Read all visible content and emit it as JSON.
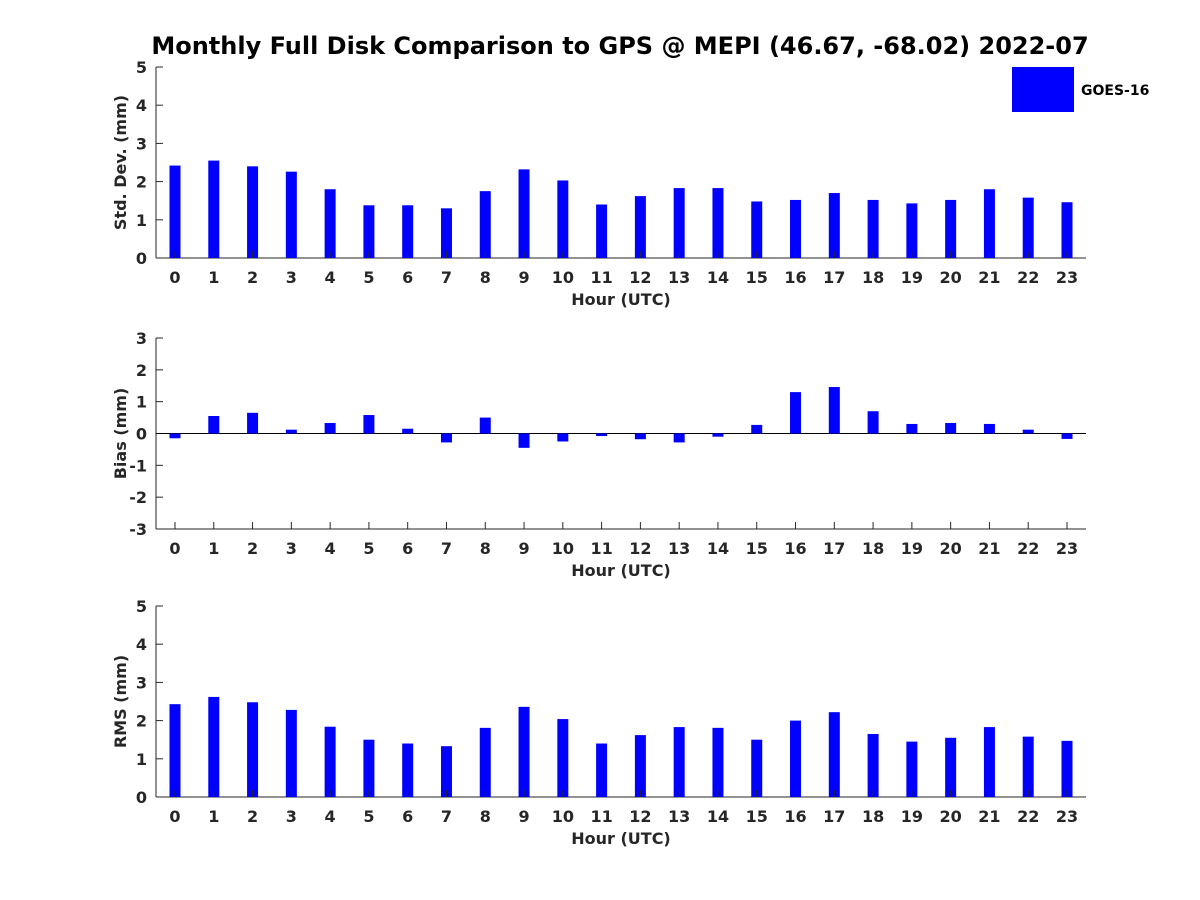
{
  "title": "Monthly Full Disk Comparison to GPS @ MEPI (46.67, -68.02) 2022-07",
  "colors": {
    "bar": "#0000ff",
    "axis": "#262626"
  },
  "legend": {
    "label": "GOES-16",
    "placement": "top-right"
  },
  "chart_data": [
    {
      "type": "bar",
      "xlabel": "Hour (UTC)",
      "ylabel": "Std. Dev. (mm)",
      "ylim": [
        0,
        5
      ],
      "yticks": [
        0,
        1,
        2,
        3,
        4,
        5
      ],
      "categories": [
        "0",
        "1",
        "2",
        "3",
        "4",
        "5",
        "6",
        "7",
        "8",
        "9",
        "10",
        "11",
        "12",
        "13",
        "14",
        "15",
        "16",
        "17",
        "18",
        "19",
        "20",
        "21",
        "22",
        "23"
      ],
      "series": [
        {
          "name": "GOES-16",
          "values": [
            2.42,
            2.55,
            2.4,
            2.26,
            1.8,
            1.38,
            1.38,
            1.3,
            1.75,
            2.32,
            2.03,
            1.4,
            1.62,
            1.83,
            1.83,
            1.48,
            1.52,
            1.7,
            1.52,
            1.43,
            1.52,
            1.8,
            1.58,
            1.46
          ]
        }
      ]
    },
    {
      "type": "bar",
      "xlabel": "Hour (UTC)",
      "ylabel": "Bias (mm)",
      "ylim": [
        -3,
        3
      ],
      "yticks": [
        -3,
        -2,
        -1,
        0,
        1,
        2,
        3
      ],
      "categories": [
        "0",
        "1",
        "2",
        "3",
        "4",
        "5",
        "6",
        "7",
        "8",
        "9",
        "10",
        "11",
        "12",
        "13",
        "14",
        "15",
        "16",
        "17",
        "18",
        "19",
        "20",
        "21",
        "22",
        "23"
      ],
      "series": [
        {
          "name": "GOES-16",
          "values": [
            -0.15,
            0.55,
            0.65,
            0.12,
            0.33,
            0.58,
            0.15,
            -0.28,
            0.5,
            -0.45,
            -0.25,
            -0.08,
            -0.18,
            -0.28,
            -0.1,
            0.27,
            1.3,
            1.46,
            0.7,
            0.3,
            0.33,
            0.3,
            0.12,
            -0.17
          ]
        }
      ]
    },
    {
      "type": "bar",
      "xlabel": "Hour (UTC)",
      "ylabel": "RMS (mm)",
      "ylim": [
        0,
        5
      ],
      "yticks": [
        0,
        1,
        2,
        3,
        4,
        5
      ],
      "categories": [
        "0",
        "1",
        "2",
        "3",
        "4",
        "5",
        "6",
        "7",
        "8",
        "9",
        "10",
        "11",
        "12",
        "13",
        "14",
        "15",
        "16",
        "17",
        "18",
        "19",
        "20",
        "21",
        "22",
        "23"
      ],
      "series": [
        {
          "name": "GOES-16",
          "values": [
            2.43,
            2.62,
            2.48,
            2.28,
            1.84,
            1.5,
            1.4,
            1.33,
            1.81,
            2.36,
            2.04,
            1.4,
            1.62,
            1.83,
            1.81,
            1.5,
            2.0,
            2.22,
            1.65,
            1.45,
            1.55,
            1.83,
            1.58,
            1.47
          ]
        }
      ]
    }
  ]
}
